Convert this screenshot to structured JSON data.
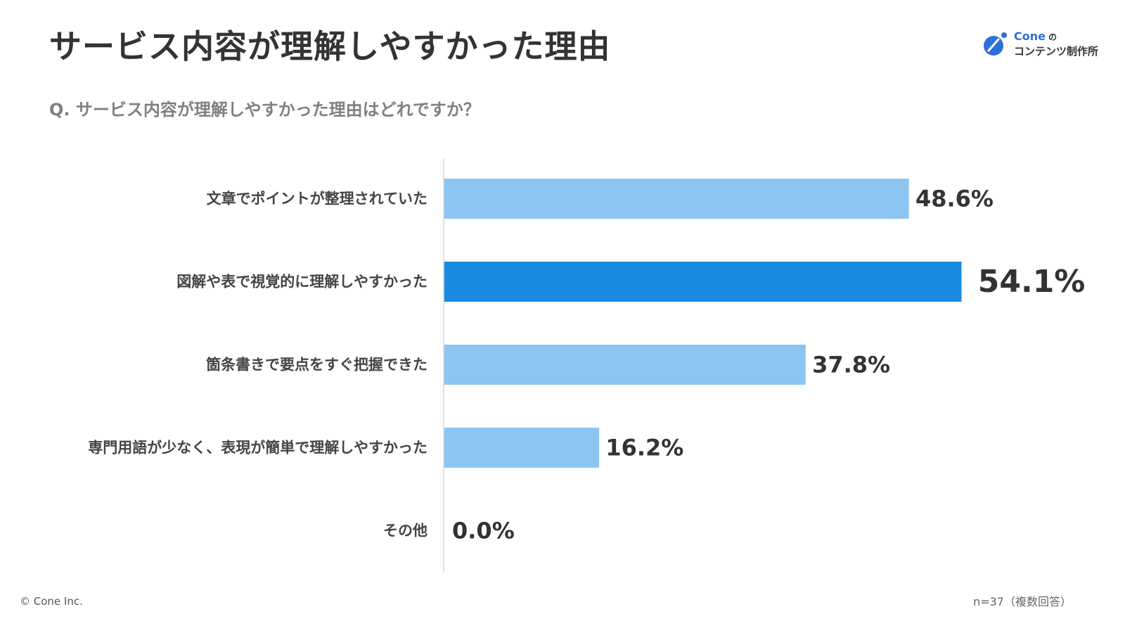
{
  "header": {
    "title": "サービス内容が理解しやすかった理由",
    "question": "Q. サービス内容が理解しやすかった理由はどれですか？"
  },
  "logo": {
    "brand": "Cone",
    "particle": "の",
    "name": "コンテンツ制作所",
    "accent_color": "#2f6fd8"
  },
  "footer": {
    "copyright": "© Cone Inc.",
    "sample_note": "n=37（複数回答）"
  },
  "chart_data": {
    "type": "bar",
    "orientation": "horizontal",
    "title": "",
    "xlabel": "",
    "ylabel": "",
    "xlim": [
      0,
      60
    ],
    "grid": false,
    "legend": "none",
    "categories": [
      "文章でポイントが整理されていた",
      "図解や表で視覚的に理解しやすかった",
      "箇条書きで要点をすぐ把握できた",
      "専門用語が少なく、表現が簡単で理解しやすかった",
      "その他"
    ],
    "values": [
      48.6,
      54.1,
      37.8,
      16.2,
      0.0
    ],
    "value_labels": [
      "48.6%",
      "54.1%",
      "37.8%",
      "16.2%",
      "0.0%"
    ],
    "highlight_index": 1,
    "colors": {
      "bar": "#8cc5f2",
      "highlight": "#1a8be0",
      "axis": "#d9d9d9"
    }
  }
}
